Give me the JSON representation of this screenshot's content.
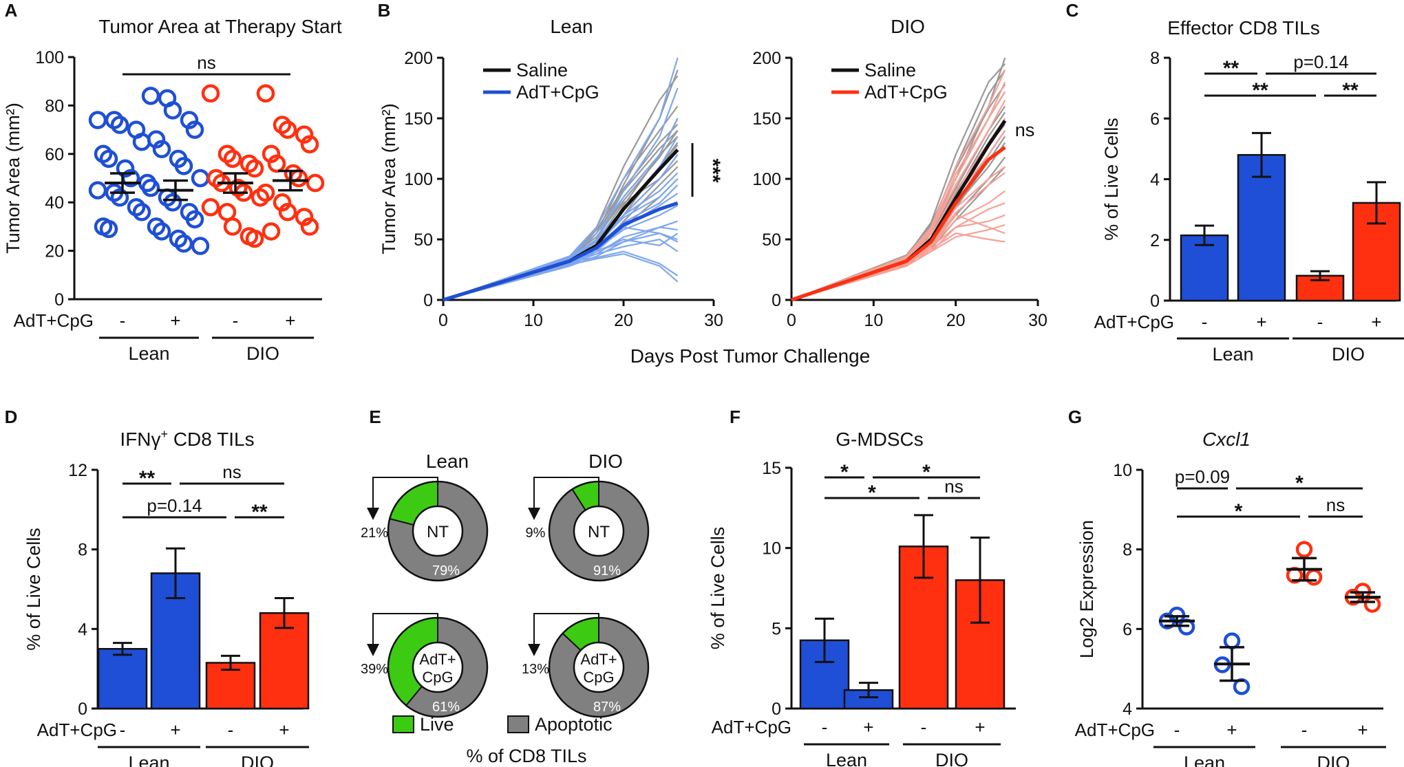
{
  "colors": {
    "blue": "#1F4FD6",
    "blue_light": "#7FA7EE",
    "red": "#FF3010",
    "red_light": "#F7A196",
    "black": "#111111",
    "gray": "#999999",
    "green": "#3CCB12",
    "apoptotic_gray": "#808080"
  },
  "chart_data": [
    {
      "panel": "A",
      "type": "scatter",
      "title": "Tumor Area at Therapy Start",
      "ylabel": "Tumor Area (mm²)",
      "ylim": [
        0,
        100
      ],
      "yticks": [
        0,
        20,
        40,
        60,
        80,
        100
      ],
      "row_label": "AdT+CpG",
      "treatment_signs": [
        "-",
        "+",
        "-",
        "+"
      ],
      "group_labels": [
        "Lean",
        "DIO"
      ],
      "significance": [
        {
          "from": 0,
          "to": 3,
          "label": "ns"
        }
      ],
      "series": [
        {
          "name": "Lean -",
          "color": "blue",
          "mean": 48,
          "sem": 4,
          "values": [
            74,
            74,
            72,
            70,
            65,
            60,
            58,
            54,
            50,
            48,
            45,
            44,
            42,
            38,
            36,
            30,
            29
          ]
        },
        {
          "name": "Lean +",
          "color": "blue",
          "mean": 45,
          "sem": 4,
          "values": [
            84,
            83,
            78,
            74,
            70,
            66,
            62,
            58,
            55,
            50,
            46,
            42,
            40,
            36,
            33,
            30,
            28,
            25,
            23,
            22
          ]
        },
        {
          "name": "DIO -",
          "color": "red",
          "mean": 48,
          "sem": 4,
          "values": [
            85,
            60,
            58,
            56,
            54,
            50,
            48,
            46,
            44,
            42,
            38,
            36,
            30,
            26,
            25
          ]
        },
        {
          "name": "DIO +",
          "color": "red",
          "mean": 49,
          "sem": 4,
          "values": [
            85,
            72,
            70,
            68,
            64,
            60,
            56,
            52,
            50,
            48,
            44,
            40,
            36,
            34,
            30,
            28
          ]
        }
      ]
    },
    {
      "panel": "B",
      "type": "line",
      "title_left": "Lean",
      "title_right": "DIO",
      "ylabel": "Tumor Area (mm²)",
      "xlabel": "Days Post Tumor Challenge",
      "xlim": [
        0,
        30
      ],
      "ylim": [
        0,
        200
      ],
      "xticks": [
        0,
        10,
        20,
        30
      ],
      "yticks": [
        0,
        50,
        100,
        150,
        200
      ],
      "left_legend": [
        "Saline",
        "AdT+CpG"
      ],
      "right_legend": [
        "Saline",
        "AdT+CpG"
      ],
      "left_sig": "***",
      "right_sig": "ns",
      "days": [
        0,
        14,
        17,
        20,
        24,
        26
      ],
      "left_mean_saline": [
        0,
        32,
        45,
        75,
        108,
        124
      ],
      "left_mean_treated": [
        0,
        32,
        43,
        62,
        75,
        80
      ],
      "right_mean_saline": [
        0,
        32,
        50,
        84,
        128,
        148
      ],
      "right_mean_treated": [
        0,
        32,
        48,
        80,
        116,
        126
      ],
      "left_saline_individual": [
        [
          0,
          30,
          50,
          95,
          150,
          190
        ],
        [
          0,
          28,
          40,
          78,
          120,
          150
        ],
        [
          0,
          33,
          55,
          100,
          140,
          160
        ],
        [
          0,
          30,
          45,
          70,
          110,
          130
        ],
        [
          0,
          35,
          48,
          80,
          100,
          115
        ],
        [
          0,
          32,
          55,
          90,
          125,
          140
        ],
        [
          0,
          30,
          42,
          60,
          85,
          100
        ],
        [
          0,
          28,
          50,
          85,
          120,
          135
        ],
        [
          0,
          34,
          60,
          110,
          165,
          185
        ],
        [
          0,
          30,
          44,
          70,
          100,
          120
        ],
        [
          0,
          32,
          46,
          75,
          110,
          128
        ],
        [
          0,
          36,
          52,
          82,
          118,
          140
        ],
        [
          0,
          30,
          40,
          65,
          95,
          110
        ],
        [
          0,
          33,
          58,
          92,
          130,
          145
        ]
      ],
      "left_treated_individual": [
        [
          0,
          28,
          40,
          60,
          78,
          88
        ],
        [
          0,
          34,
          48,
          70,
          90,
          105
        ],
        [
          0,
          30,
          38,
          44,
          50,
          40
        ],
        [
          0,
          33,
          42,
          60,
          55,
          48
        ],
        [
          0,
          30,
          46,
          68,
          85,
          100
        ],
        [
          0,
          32,
          35,
          40,
          30,
          20
        ],
        [
          0,
          35,
          50,
          90,
          135,
          175
        ],
        [
          0,
          28,
          36,
          48,
          60,
          65
        ],
        [
          0,
          36,
          55,
          85,
          120,
          150
        ],
        [
          0,
          30,
          40,
          50,
          45,
          55
        ],
        [
          0,
          32,
          44,
          64,
          80,
          95
        ],
        [
          0,
          29,
          34,
          38,
          28,
          15
        ],
        [
          0,
          34,
          50,
          75,
          110,
          135
        ],
        [
          0,
          31,
          38,
          52,
          60,
          58
        ],
        [
          0,
          36,
          60,
          100,
          150,
          200
        ],
        [
          0,
          30,
          42,
          58,
          70,
          78
        ],
        [
          0,
          33,
          40,
          48,
          55,
          50
        ],
        [
          0,
          28,
          44,
          70,
          100,
          120
        ]
      ],
      "right_saline_individual": [
        [
          0,
          30,
          55,
          100,
          160,
          200
        ],
        [
          0,
          35,
          60,
          110,
          170,
          190
        ],
        [
          0,
          32,
          50,
          85,
          130,
          150
        ],
        [
          0,
          28,
          45,
          80,
          120,
          140
        ],
        [
          0,
          36,
          64,
          120,
          180,
          195
        ],
        [
          0,
          30,
          48,
          78,
          110,
          130
        ],
        [
          0,
          33,
          55,
          92,
          140,
          160
        ],
        [
          0,
          31,
          44,
          70,
          100,
          118
        ],
        [
          0,
          35,
          58,
          100,
          150,
          172
        ],
        [
          0,
          29,
          46,
          76,
          115,
          135
        ],
        [
          0,
          34,
          52,
          88,
          135,
          155
        ],
        [
          0,
          30,
          42,
          66,
          95,
          110
        ],
        [
          0,
          37,
          62,
          108,
          158,
          178
        ],
        [
          0,
          32,
          50,
          84,
          128,
          145
        ]
      ],
      "right_treated_individual": [
        [
          0,
          30,
          45,
          70,
          60,
          55
        ],
        [
          0,
          34,
          55,
          100,
          150,
          180
        ],
        [
          0,
          28,
          40,
          60,
          65,
          70
        ],
        [
          0,
          32,
          50,
          85,
          120,
          140
        ],
        [
          0,
          36,
          60,
          110,
          160,
          190
        ],
        [
          0,
          30,
          42,
          55,
          50,
          48
        ],
        [
          0,
          33,
          48,
          76,
          100,
          110
        ],
        [
          0,
          29,
          44,
          66,
          80,
          90
        ],
        [
          0,
          35,
          56,
          95,
          140,
          165
        ],
        [
          0,
          31,
          40,
          52,
          58,
          62
        ],
        [
          0,
          34,
          52,
          90,
          130,
          150
        ],
        [
          0,
          30,
          46,
          72,
          95,
          105
        ],
        [
          0,
          32,
          44,
          60,
          75,
          80
        ],
        [
          0,
          36,
          58,
          104,
          150,
          172
        ]
      ]
    },
    {
      "panel": "C",
      "type": "bar",
      "title": "Effector CD8 TILs",
      "ylabel": "% of Live Cells",
      "ylim": [
        0,
        8
      ],
      "yticks": [
        0,
        2,
        4,
        6,
        8
      ],
      "row_label": "AdT+CpG",
      "treatment_signs": [
        "-",
        "+",
        "-",
        "+"
      ],
      "group_labels": [
        "Lean",
        "DIO"
      ],
      "values": [
        2.15,
        4.8,
        0.82,
        3.22
      ],
      "errors": [
        0.32,
        0.72,
        0.15,
        0.68
      ],
      "bar_colors": [
        "blue",
        "blue",
        "red",
        "red"
      ],
      "significance": [
        {
          "from": 0,
          "to": 1,
          "label": "**",
          "level": 2
        },
        {
          "from": 1,
          "to": 3,
          "label": "p=0.14",
          "level": 2
        },
        {
          "from": 0,
          "to": 2,
          "label": "**",
          "level": 1
        },
        {
          "from": 2,
          "to": 3,
          "label": "**",
          "level": 1
        }
      ]
    },
    {
      "panel": "D",
      "type": "bar",
      "title_main": "IFNγ",
      "title_sup": "+",
      "title_rest": " CD8 TILs",
      "ylabel": "% of Live Cells",
      "ylim": [
        0,
        12
      ],
      "yticks": [
        0,
        4,
        8,
        12
      ],
      "row_label": "AdT+CpG",
      "treatment_signs": [
        "-",
        "+",
        "-",
        "+"
      ],
      "group_labels": [
        "Lean",
        "DIO"
      ],
      "values": [
        3.0,
        6.8,
        2.3,
        4.8
      ],
      "errors": [
        0.3,
        1.25,
        0.35,
        0.75
      ],
      "bar_colors": [
        "blue",
        "blue",
        "red",
        "red"
      ],
      "significance": [
        {
          "from": 0,
          "to": 1,
          "label": "**",
          "level": 2
        },
        {
          "from": 1,
          "to": 3,
          "label": "ns",
          "level": 2
        },
        {
          "from": 0,
          "to": 2,
          "label": "p=0.14",
          "level": 1
        },
        {
          "from": 2,
          "to": 3,
          "label": "**",
          "level": 1
        }
      ]
    },
    {
      "panel": "E",
      "type": "pie",
      "col_titles": [
        "Lean",
        "DIO"
      ],
      "donuts": [
        {
          "center": "NT",
          "live": 21,
          "apoptotic": 79,
          "live_label": "21%",
          "apoptotic_label": "79%"
        },
        {
          "center": "NT",
          "live": 9,
          "apoptotic": 91,
          "live_label": "9%",
          "apoptotic_label": "91%"
        },
        {
          "center_line1": "AdT+",
          "center_line2": "CpG",
          "live": 39,
          "apoptotic": 61,
          "live_label": "39%",
          "apoptotic_label": "61%"
        },
        {
          "center_line1": "AdT+",
          "center_line2": "CpG",
          "live": 13,
          "apoptotic": 87,
          "live_label": "13%",
          "apoptotic_label": "87%"
        }
      ],
      "legend": [
        "Live",
        "Apoptotic"
      ],
      "caption": "% of  CD8 TILs"
    },
    {
      "panel": "F",
      "type": "bar",
      "title": "G-MDSCs",
      "ylabel": "% of Live Cells",
      "ylim": [
        0,
        15
      ],
      "yticks": [
        0,
        5,
        10,
        15
      ],
      "row_label": "AdT+CpG",
      "treatment_signs": [
        "-",
        "+",
        "-",
        "+"
      ],
      "group_labels": [
        "Lean",
        "DIO"
      ],
      "values": [
        4.25,
        1.15,
        10.1,
        8.0
      ],
      "errors": [
        1.35,
        0.45,
        1.95,
        2.65
      ],
      "bar_colors": [
        "blue",
        "blue",
        "red",
        "red"
      ],
      "significance": [
        {
          "from": 0,
          "to": 1,
          "label": "*",
          "level": 2
        },
        {
          "from": 1,
          "to": 3,
          "label": "*",
          "level": 2
        },
        {
          "from": 0,
          "to": 2,
          "label": "*",
          "level": 1
        },
        {
          "from": 2,
          "to": 3,
          "label": "ns",
          "level": 1
        }
      ]
    },
    {
      "panel": "G",
      "type": "scatter",
      "title": "Cxcl1",
      "ylabel": "Log2 Expression",
      "ylim": [
        4,
        10
      ],
      "yticks": [
        4,
        6,
        8,
        10
      ],
      "row_label": "AdT+CpG",
      "treatment_signs": [
        "-",
        "+",
        "-",
        "+"
      ],
      "group_labels": [
        "Lean",
        "DIO"
      ],
      "series": [
        {
          "name": "Lean -",
          "color": "blue",
          "mean": 6.2,
          "sem": 0.12,
          "values": [
            6.35,
            6.2,
            6.05
          ]
        },
        {
          "name": "Lean +",
          "color": "blue",
          "mean": 5.12,
          "sem": 0.42,
          "values": [
            5.7,
            5.1,
            4.55
          ]
        },
        {
          "name": "DIO -",
          "color": "red",
          "mean": 7.5,
          "sem": 0.28,
          "values": [
            8.0,
            7.35,
            7.3
          ]
        },
        {
          "name": "DIO +",
          "color": "red",
          "mean": 6.8,
          "sem": 0.12,
          "values": [
            6.95,
            6.8,
            6.62
          ]
        }
      ],
      "significance": [
        {
          "from": 0,
          "to": 1,
          "label": "p=0.09",
          "level": 2
        },
        {
          "from": 1,
          "to": 3,
          "label": "*",
          "level": 2
        },
        {
          "from": 0,
          "to": 2,
          "label": "*",
          "level": 1
        },
        {
          "from": 2,
          "to": 3,
          "label": "ns",
          "level": 1
        }
      ]
    }
  ],
  "panel_letters": [
    "A",
    "B",
    "C",
    "D",
    "E",
    "F",
    "G"
  ]
}
